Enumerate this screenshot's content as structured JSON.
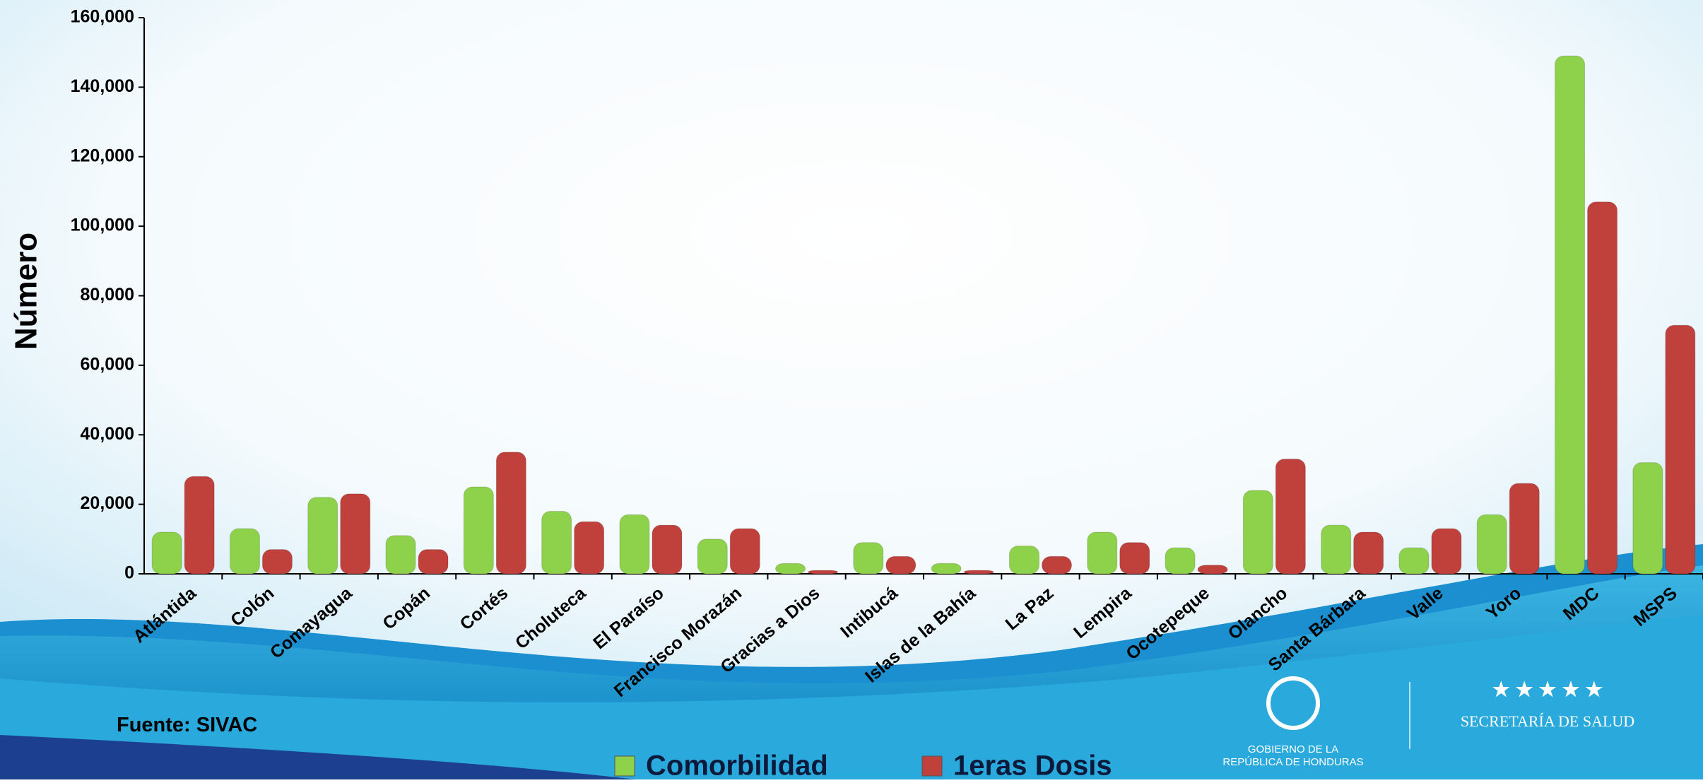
{
  "chart_data": {
    "type": "bar",
    "y_axis_label": "Número",
    "categories": [
      "Atlántida",
      "Colón",
      "Comayagua",
      "Copán",
      "Cortés",
      "Choluteca",
      "El Paraíso",
      "Francisco Morazán",
      "Gracias a Dios",
      "Intibucá",
      "Islas de la Bahía",
      "La Paz",
      "Lempira",
      "Ocotepeque",
      "Olancho",
      "Santa Bárbara",
      "Valle",
      "Yoro",
      "MDC",
      "MSPS"
    ],
    "series": [
      {
        "name": "Comorbilidad",
        "color": "#8ed14a",
        "values": [
          12000,
          13000,
          22000,
          11000,
          25000,
          18000,
          17000,
          10000,
          3000,
          9000,
          3000,
          8000,
          12000,
          7500,
          24000,
          14000,
          7500,
          17000,
          149000,
          32000
        ]
      },
      {
        "name": "1eras Dosis",
        "color": "#c0403c",
        "values": [
          28000,
          7000,
          23000,
          7000,
          35000,
          15000,
          14000,
          13000,
          1000,
          5000,
          1000,
          5000,
          9000,
          2500,
          33000,
          12000,
          13000,
          26000,
          107000,
          71500
        ]
      }
    ],
    "ylim": [
      0,
      160000
    ],
    "yticks": [
      0,
      {
        "value": 20000,
        "label": "20,000"
      },
      {
        "value": 40000,
        "label": "40,000"
      },
      {
        "value": 60000,
        "label": "60,000"
      },
      {
        "value": 80000,
        "label": "80,000"
      },
      {
        "value": 100000,
        "label": "100,000"
      },
      {
        "value": 120000,
        "label": "120,000"
      },
      {
        "value": 140000,
        "label": "140,000"
      },
      {
        "value": 160000,
        "label": "160,000"
      }
    ],
    "grid": false,
    "source": "Fuente: SIVAC"
  },
  "footer": {
    "government_line1": "GOBIERNO DE LA",
    "government_line2": "REPÚBLICA DE HONDURAS",
    "ministry": "SECRETARÍA DE SALUD"
  }
}
